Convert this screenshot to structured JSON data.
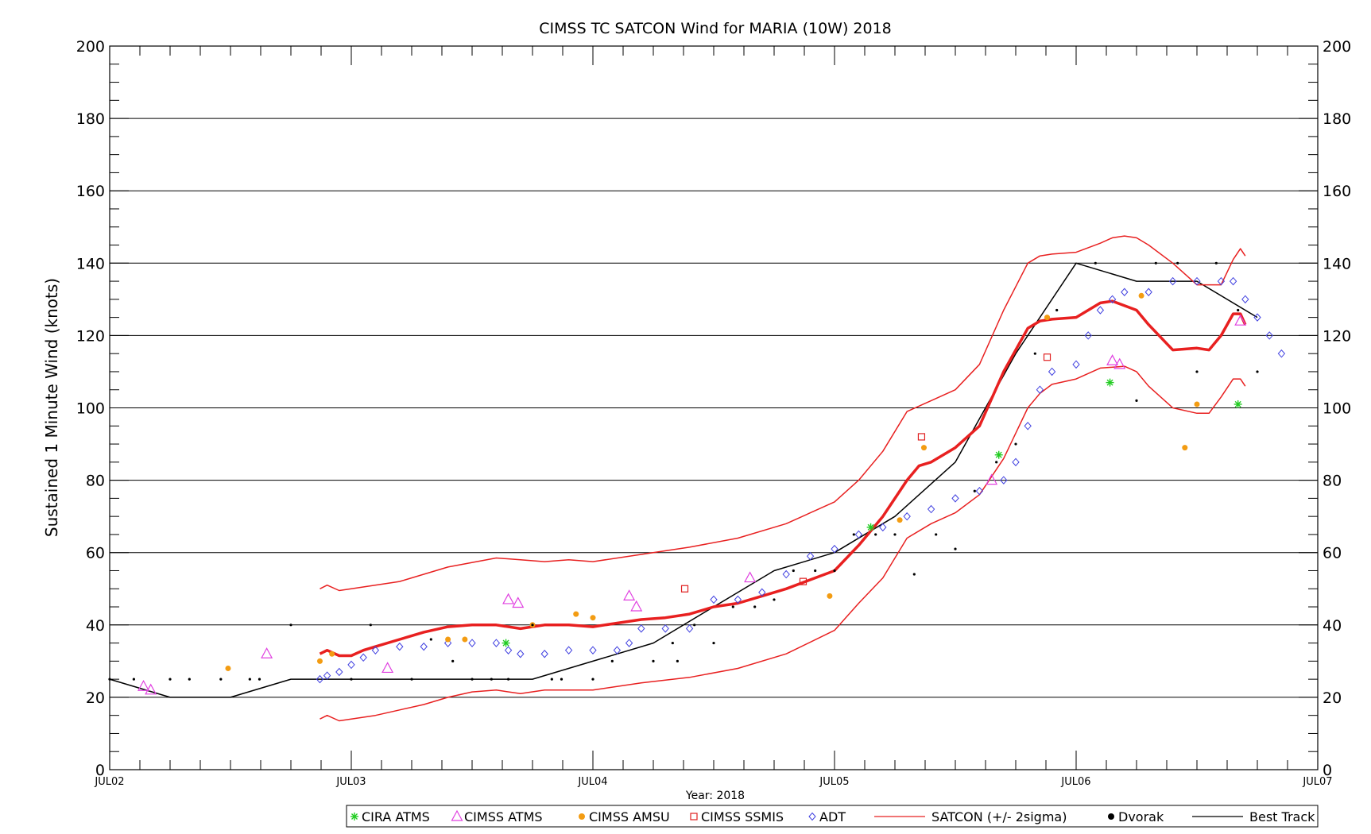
{
  "chart_data": {
    "type": "line",
    "title": "CIMSS TC SATCON Wind for MARIA (10W) 2018",
    "ylabel": "Sustained 1 Minute Wind (knots)",
    "xlabel": "Year: 2018",
    "ylim": [
      0,
      200
    ],
    "xlim": [
      0,
      5
    ],
    "y_ticks": [
      "0",
      "20",
      "40",
      "60",
      "80",
      "100",
      "120",
      "140",
      "160",
      "180",
      "200"
    ],
    "x_ticks": [
      "JUL02",
      "JUL03",
      "JUL04",
      "JUL05",
      "JUL06",
      "JUL07"
    ],
    "grid": true,
    "legend_position": "bottom",
    "legend": [
      {
        "name": "CIRA ATMS",
        "symbol": "asterisk",
        "color": "#22cc22"
      },
      {
        "name": "CIMSS ATMS",
        "symbol": "triangle",
        "color": "#e040e0"
      },
      {
        "name": "CIMSS AMSU",
        "symbol": "filled-circle",
        "color": "#f39c12"
      },
      {
        "name": "CIMSS SSMIS",
        "symbol": "square",
        "color": "#e02020"
      },
      {
        "name": "ADT",
        "symbol": "diamond",
        "color": "#4040e0"
      },
      {
        "name": "SATCON (+/-  2sigma)",
        "symbol": "line",
        "color": "#e82020"
      },
      {
        "name": "Dvorak",
        "symbol": "filled-circle",
        "color": "#000000"
      },
      {
        "name": "Best Track",
        "symbol": "line",
        "color": "#000000"
      }
    ],
    "series": [
      {
        "name": "Best Track",
        "color": "#000000",
        "x": [
          0,
          0.25,
          0.5,
          0.75,
          1.0,
          1.25,
          1.5,
          1.75,
          2.0,
          2.25,
          2.5,
          2.75,
          3.0,
          3.25,
          3.5,
          3.75,
          4.0,
          4.25,
          4.5,
          4.75
        ],
        "y": [
          25,
          20,
          20,
          25,
          25,
          25,
          25,
          25,
          30,
          35,
          45,
          55,
          60,
          70,
          85,
          115,
          140,
          135,
          135,
          125
        ]
      },
      {
        "name": "SATCON",
        "color": "#e82020",
        "x": [
          0.87,
          0.9,
          0.95,
          1.0,
          1.05,
          1.1,
          1.2,
          1.3,
          1.4,
          1.5,
          1.6,
          1.7,
          1.8,
          1.9,
          2.0,
          2.1,
          2.2,
          2.3,
          2.4,
          2.5,
          2.6,
          2.7,
          2.8,
          2.9,
          3.0,
          3.1,
          3.2,
          3.3,
          3.35,
          3.4,
          3.5,
          3.6,
          3.7,
          3.8,
          3.85,
          3.9,
          4.0,
          4.1,
          4.15,
          4.25,
          4.3,
          4.4,
          4.5,
          4.55,
          4.6,
          4.65,
          4.68,
          4.7
        ],
        "y": [
          32,
          33,
          31.5,
          31.5,
          33,
          34,
          36,
          38,
          39.5,
          40,
          40,
          39,
          40,
          40,
          39.5,
          40.5,
          41.5,
          42,
          43,
          45,
          46,
          48,
          50,
          52.5,
          55,
          62,
          70,
          80,
          84,
          85,
          89,
          95,
          110,
          122,
          124,
          124.5,
          125,
          129,
          129.5,
          127,
          123,
          116,
          116.5,
          116,
          120,
          126,
          126,
          123
        ]
      },
      {
        "name": "SATCON +2sigma",
        "color": "#e82020",
        "x": [
          0.87,
          0.9,
          0.95,
          1.0,
          1.2,
          1.4,
          1.6,
          1.7,
          1.8,
          1.9,
          2.0,
          2.2,
          2.4,
          2.6,
          2.8,
          3.0,
          3.1,
          3.2,
          3.3,
          3.4,
          3.5,
          3.6,
          3.7,
          3.8,
          3.85,
          3.9,
          4.0,
          4.1,
          4.15,
          4.2,
          4.25,
          4.3,
          4.4,
          4.5,
          4.55,
          4.6,
          4.65,
          4.68,
          4.7
        ],
        "y": [
          50,
          51,
          49.5,
          50,
          52,
          56,
          58.5,
          58,
          57.5,
          58,
          57.5,
          59.5,
          61.5,
          64,
          68,
          74,
          80,
          88,
          99,
          102,
          105,
          112,
          127,
          140,
          142,
          142.5,
          143,
          145.5,
          147,
          147.5,
          147,
          145,
          140,
          134,
          134,
          134,
          141,
          144,
          142
        ]
      },
      {
        "name": "SATCON -2sigma",
        "color": "#e82020",
        "x": [
          0.87,
          0.9,
          0.95,
          1.0,
          1.1,
          1.2,
          1.3,
          1.4,
          1.5,
          1.6,
          1.7,
          1.8,
          1.9,
          2.0,
          2.2,
          2.4,
          2.6,
          2.8,
          3.0,
          3.1,
          3.2,
          3.3,
          3.4,
          3.5,
          3.6,
          3.7,
          3.8,
          3.85,
          3.9,
          4.0,
          4.1,
          4.2,
          4.25,
          4.3,
          4.4,
          4.5,
          4.55,
          4.6,
          4.65,
          4.68,
          4.7
        ],
        "y": [
          14,
          15,
          13.5,
          14,
          15,
          16.5,
          18,
          20,
          21.5,
          22,
          21,
          22,
          22,
          22,
          24,
          25.5,
          28,
          32,
          38.5,
          46,
          53,
          64,
          68,
          71,
          76,
          86,
          100,
          104,
          106.5,
          108,
          111,
          111.5,
          110,
          106,
          100,
          98.5,
          98.5,
          103,
          108,
          108,
          106
        ]
      },
      {
        "name": "ADT",
        "color": "#4040e0",
        "symbol": "diamond",
        "x": [
          0.87,
          0.9,
          0.95,
          1.0,
          1.05,
          1.1,
          1.2,
          1.3,
          1.4,
          1.5,
          1.6,
          1.65,
          1.7,
          1.8,
          1.9,
          2.0,
          2.1,
          2.15,
          2.2,
          2.3,
          2.4,
          2.5,
          2.6,
          2.7,
          2.8,
          2.9,
          3.0,
          3.1,
          3.2,
          3.3,
          3.4,
          3.5,
          3.6,
          3.7,
          3.75,
          3.8,
          3.85,
          3.9,
          4.0,
          4.05,
          4.1,
          4.15,
          4.2,
          4.3,
          4.4,
          4.5,
          4.6,
          4.65,
          4.7,
          4.75,
          4.8,
          4.85
        ],
        "y": [
          25,
          26,
          27,
          29,
          31,
          33,
          34,
          34,
          35,
          35,
          35,
          33,
          32,
          32,
          33,
          33,
          33,
          35,
          39,
          39,
          39,
          47,
          47,
          49,
          54,
          59,
          61,
          65,
          67,
          70,
          72,
          75,
          77,
          80,
          85,
          95,
          105,
          110,
          112,
          120,
          127,
          130,
          132,
          132,
          135,
          135,
          135,
          135,
          130,
          125,
          120,
          115
        ]
      },
      {
        "name": "CIMSS ATMS",
        "color": "#e040e0",
        "symbol": "triangle",
        "x": [
          0.14,
          0.17,
          0.65,
          1.15,
          1.65,
          1.69,
          2.15,
          2.18,
          2.65,
          3.65,
          4.15,
          4.18,
          4.68
        ],
        "y": [
          23,
          22,
          32,
          28,
          47,
          46,
          48,
          45,
          53,
          80,
          113,
          112,
          124
        ]
      },
      {
        "name": "CIRA ATMS",
        "color": "#22cc22",
        "symbol": "asterisk",
        "x": [
          1.64,
          3.15,
          3.68,
          4.14,
          4.67
        ],
        "y": [
          35,
          67,
          87,
          107,
          101
        ]
      },
      {
        "name": "CIMSS AMSU",
        "color": "#f39c12",
        "symbol": "filled-circle",
        "x": [
          0.49,
          0.87,
          0.92,
          1.4,
          1.47,
          1.75,
          1.93,
          2.0,
          2.98,
          3.27,
          3.37,
          3.88,
          4.27,
          4.45,
          4.5
        ],
        "y": [
          28,
          30,
          32,
          36,
          36,
          40,
          43,
          42,
          48,
          69,
          89,
          125,
          131,
          89,
          101
        ]
      },
      {
        "name": "CIMSS SSMIS",
        "color": "#e02020",
        "symbol": "square",
        "x": [
          2.38,
          2.87,
          3.36,
          3.88
        ],
        "y": [
          50,
          52,
          92,
          114
        ]
      },
      {
        "name": "Dvorak",
        "color": "#000000",
        "symbol": "filled-circle",
        "x": [
          0.0,
          0.1,
          0.25,
          0.33,
          0.46,
          0.58,
          0.62,
          0.75,
          1.0,
          1.08,
          1.25,
          1.33,
          1.42,
          1.5,
          1.58,
          1.65,
          1.75,
          1.83,
          1.87,
          2.0,
          2.08,
          2.25,
          2.33,
          2.35,
          2.42,
          2.5,
          2.58,
          2.67,
          2.75,
          2.83,
          2.92,
          3.0,
          3.08,
          3.17,
          3.25,
          3.33,
          3.42,
          3.5,
          3.58,
          3.67,
          3.75,
          3.83,
          3.92,
          4.08,
          4.25,
          4.33,
          4.42,
          4.5,
          4.58,
          4.67,
          4.75
        ],
        "y": [
          25,
          25,
          25,
          25,
          25,
          25,
          25,
          40,
          25,
          40,
          25,
          36,
          30,
          25,
          25,
          25,
          40,
          25,
          25,
          25,
          30,
          30,
          35,
          30,
          40,
          35,
          45,
          45,
          47,
          55,
          55,
          55,
          65,
          65,
          65,
          54,
          65,
          61,
          77,
          85,
          90,
          115,
          127,
          140,
          102,
          140,
          140,
          110,
          140,
          127,
          110
        ]
      }
    ]
  }
}
